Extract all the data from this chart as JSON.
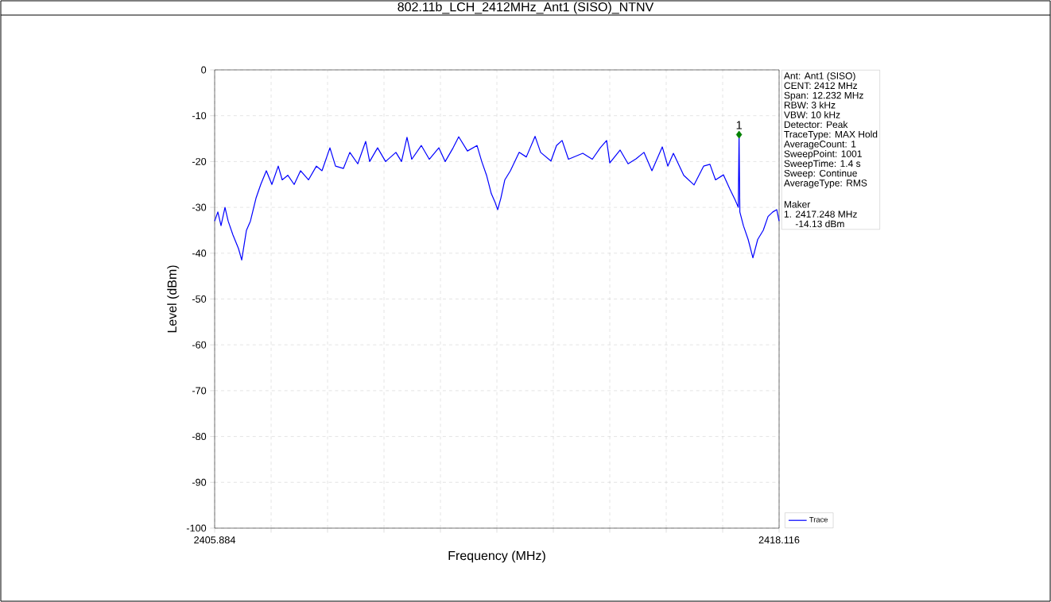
{
  "chart_data": {
    "type": "line",
    "title": "802.11b_LCH_2412MHz_Ant1 (SISO)_NTNV",
    "xlabel": "Frequency (MHz)",
    "ylabel": "Level (dBm)",
    "xlim": [
      2405.884,
      2418.116
    ],
    "ylim": [
      -100,
      0
    ],
    "xticks": [
      2405.884,
      {
        "value": 2407.1072,
        "label": null
      },
      {
        "value": 2408.3304,
        "label": null
      },
      {
        "value": 2409.5536,
        "label": null
      },
      {
        "value": 2410.7768,
        "label": null
      },
      {
        "value": 2412.0,
        "label": null
      },
      {
        "value": 2413.2232,
        "label": null
      },
      {
        "value": 2414.4464,
        "label": null
      },
      {
        "value": 2415.6696,
        "label": null
      },
      {
        "value": 2416.8928,
        "label": null
      },
      2418.116
    ],
    "yticks": [
      -100,
      -90,
      -80,
      -70,
      -60,
      -50,
      -40,
      -30,
      -20,
      -10,
      0
    ],
    "grid": true,
    "legend": "bottom right",
    "marker": "none",
    "series": [
      {
        "name": "Trace",
        "color": "#0000ff",
        "x": [
          2405.884,
          2405.953,
          2406.022,
          2406.108,
          2406.177,
          2406.28,
          2406.401,
          2406.47,
          2406.573,
          2406.659,
          2406.78,
          2406.883,
          2407.004,
          2407.124,
          2407.262,
          2407.348,
          2407.469,
          2407.607,
          2407.745,
          2407.917,
          2408.089,
          2408.21,
          2408.382,
          2408.503,
          2408.675,
          2408.813,
          2408.985,
          2409.157,
          2409.243,
          2409.415,
          2409.588,
          2409.812,
          2409.933,
          2410.052,
          2410.156,
          2410.363,
          2410.535,
          2410.742,
          2410.88,
          2411.052,
          2411.173,
          2411.362,
          2411.569,
          2411.672,
          2411.776,
          2411.879,
          2411.965,
          2412.017,
          2412.086,
          2412.172,
          2412.293,
          2412.483,
          2412.638,
          2412.827,
          2412.948,
          2413.172,
          2413.292,
          2413.413,
          2413.551,
          2413.861,
          2414.068,
          2414.24,
          2414.378,
          2414.447,
          2414.671,
          2414.843,
          2415.015,
          2415.187,
          2415.36,
          2415.584,
          2415.704,
          2415.825,
          2416.049,
          2416.273,
          2416.48,
          2416.617,
          2416.738,
          2416.91,
          2417.048,
          2417.169,
          2417.231,
          2417.248,
          2417.265,
          2417.342,
          2417.445,
          2417.548,
          2417.652,
          2417.772,
          2417.876,
          2417.979,
          2418.064,
          2418.116
        ],
        "values": [
          -33,
          -31,
          -34,
          -30,
          -33,
          -36,
          -39,
          -41.5,
          -35,
          -33,
          -28,
          -25,
          -22,
          -25,
          -21,
          -24,
          -23,
          -25,
          -22,
          -24,
          -21,
          -22,
          -17,
          -21,
          -21.5,
          -18,
          -20.5,
          -15.6,
          -20,
          -17,
          -20,
          -18,
          -20,
          -14.7,
          -19.5,
          -16.5,
          -19.5,
          -17,
          -20,
          -17,
          -14.6,
          -17.7,
          -16.5,
          -20,
          -23,
          -27,
          -29,
          -30.5,
          -28,
          -24,
          -22,
          -18,
          -19,
          -14.5,
          -18,
          -19.9,
          -16.5,
          -15.4,
          -19.5,
          -18.2,
          -19.5,
          -17,
          -15.4,
          -20.3,
          -17.5,
          -20.5,
          -19.4,
          -18,
          -22,
          -16.8,
          -21,
          -18.2,
          -23,
          -25.1,
          -21,
          -20.6,
          -24,
          -22.9,
          -26,
          -28.5,
          -30,
          -14.13,
          -31,
          -34,
          -37,
          -41,
          -37,
          -35,
          -32,
          -31,
          -30.5,
          -33
        ]
      },
      {
        "type": "scatter",
        "color": "#008000",
        "marker": "diamond",
        "x": [
          2417.248
        ],
        "values": [
          -14.13
        ]
      }
    ],
    "annotations": [
      {
        "text": "1",
        "x": 2417.248,
        "y": -14.13
      },
      "Ant: Ant1 (SISO)",
      "CENT: 2412 MHz",
      "Span: 12.232 MHz",
      "RBW: 3 kHz",
      "VBW: 10 kHz",
      "Detector: Peak",
      "TraceType: MAX Hold",
      "AverageCount: 1",
      "SweepPoint: 1001",
      "SweepTime: 1.4 s",
      "Sweep: Continue",
      "AverageType: RMS",
      "Maker",
      "1. 2417.248 MHz",
      "-14.13 dBm"
    ]
  }
}
